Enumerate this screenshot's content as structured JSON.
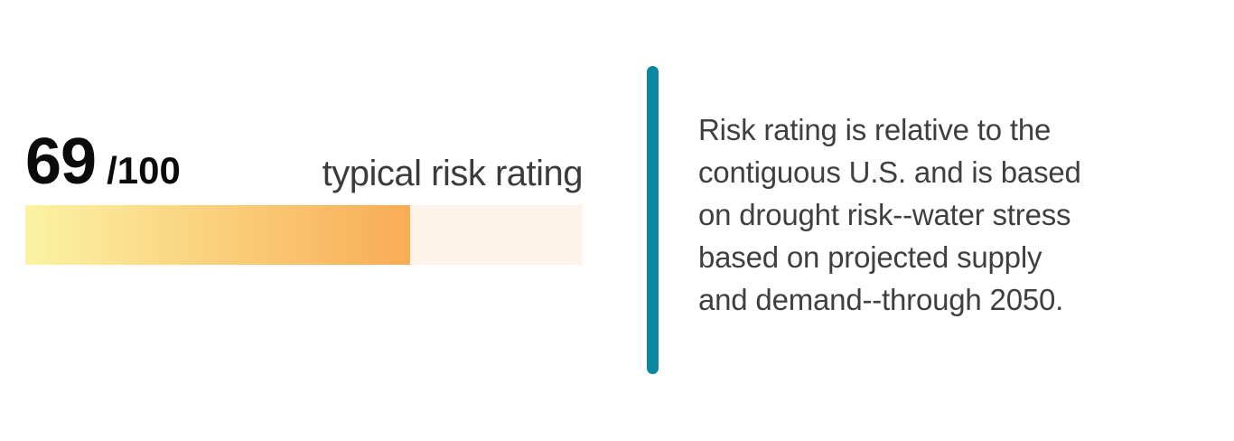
{
  "rating": {
    "score": "69",
    "denominator": "/100",
    "label": "typical risk rating",
    "percent": 69
  },
  "bar": {
    "gradient_start": "#faf3a3",
    "gradient_end": "#f9ac55",
    "track_color": "#fdf3e8"
  },
  "divider": {
    "color": "#0d87a1"
  },
  "description": {
    "text": "Risk rating is relative to the contiguous U.S. and is based on drought risk--water stress based on projected supply and demand--through 2050.",
    "lines": [
      "Risk rating is relative to the",
      "contiguous U.S. and is based",
      "on drought risk--water stress",
      "based on projected supply",
      "and demand--through 2050."
    ]
  }
}
